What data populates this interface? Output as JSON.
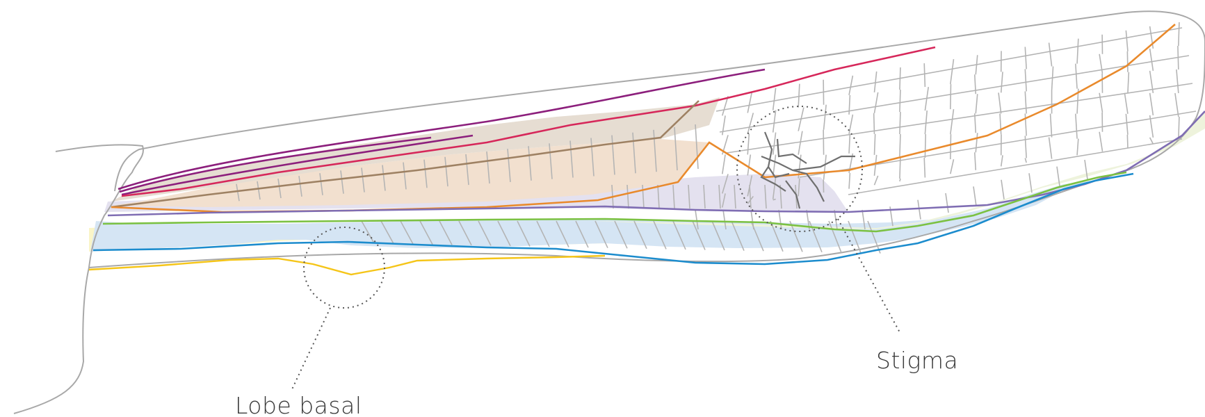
{
  "labels": {
    "stigma": "Stigma",
    "lobe_basal": "Lobe basal"
  },
  "colors": {
    "outline": "#a8a8a8",
    "crossvein": "#b4b4b4",
    "costa": "#8c1f7c",
    "subcosta": "#d6275a",
    "radius_brown": "#9e8163",
    "radius": "#e98a2c",
    "media": "#7f6db3",
    "cubitus": "#7bc142",
    "anal": "#1c8ccd",
    "jugal": "#f5c518",
    "stigma_lines": "#6f6f6f",
    "fill_tan": "#e6ddd2",
    "fill_peach": "#f2e0cf",
    "fill_lavender": "#e4e1ef",
    "fill_blue": "#d5e5f4",
    "fill_green": "#eef3dc",
    "fill_yellow": "#faf5c8",
    "dotted": "#555555"
  }
}
